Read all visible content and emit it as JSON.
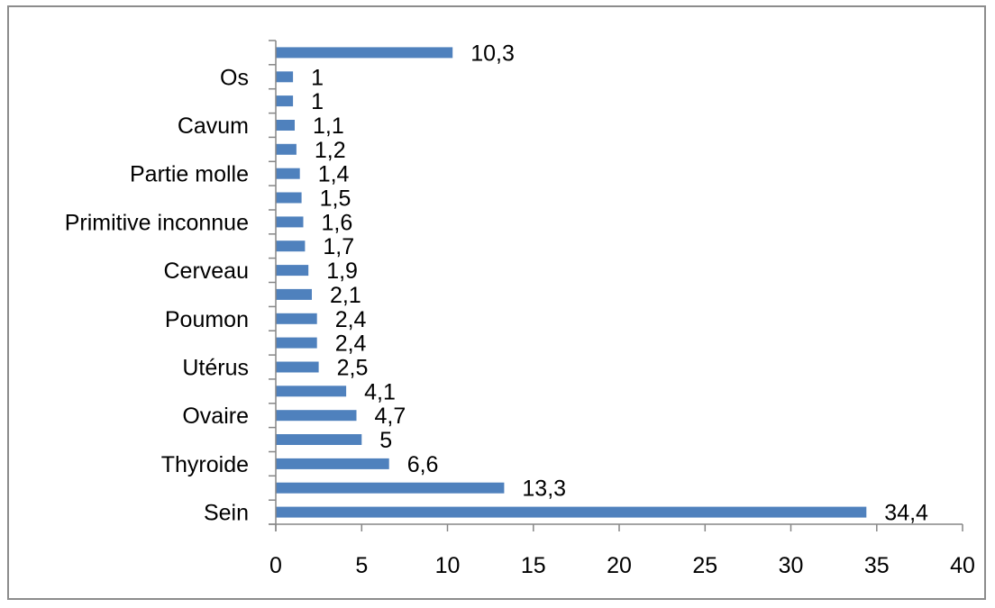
{
  "chart_data": {
    "type": "bar",
    "orientation": "horizontal",
    "categories": [
      "Sein",
      "",
      "Thyroide",
      "",
      "Ovaire",
      "",
      "Utérus",
      "",
      "Poumon",
      "",
      "Cerveau",
      "",
      "Primitive inconnue",
      "",
      "Partie molle",
      "",
      "Cavum",
      "",
      "Os",
      ""
    ],
    "values": [
      34.4,
      13.3,
      6.6,
      5,
      4.7,
      4.1,
      2.5,
      2.4,
      2.4,
      2.1,
      1.9,
      1.7,
      1.6,
      1.5,
      1.4,
      1.2,
      1.1,
      1,
      1,
      10.3
    ],
    "data_labels": [
      "34,4",
      "13,3",
      "6,6",
      "5",
      "4,7",
      "4,1",
      "2,5",
      "2,4",
      "2,4",
      "2,1",
      "1,9",
      "1,7",
      "1,6",
      "1,5",
      "1,4",
      "1,2",
      "1,1",
      "1",
      "1",
      "10,3"
    ],
    "x_ticks": [
      "0",
      "5",
      "10",
      "15",
      "20",
      "25",
      "30",
      "35",
      "40"
    ],
    "xlim": [
      0,
      40
    ],
    "title": "",
    "xlabel": "",
    "ylabel": "",
    "grid": false,
    "legend": "none",
    "colors": {
      "bar": "#4f81bd",
      "axis": "#868686",
      "frame": "#8c8c8c"
    }
  }
}
